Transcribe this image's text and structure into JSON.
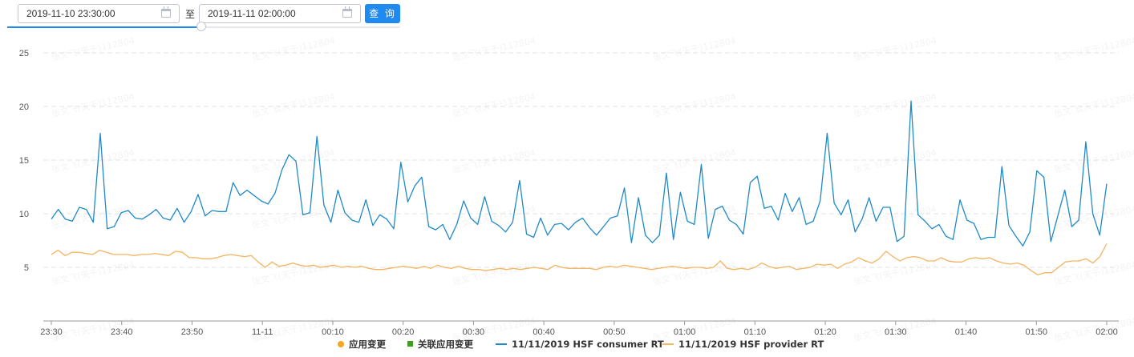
{
  "toolbar": {
    "start_value": "2019-11-10 23:30:00",
    "end_value": "2019-11-11 02:00:00",
    "separator": "至",
    "query_label": "查 询",
    "calendar_icon": "calendar-icon",
    "range_progress": 0.5
  },
  "watermark": "张文飞(天千)112804",
  "chart_data": {
    "type": "line",
    "title": "",
    "xlabel": "",
    "ylabel": "",
    "x_ticks": [
      "23:30",
      "23:40",
      "23:50",
      "11-11",
      "00:10",
      "00:20",
      "00:30",
      "00:40",
      "00:50",
      "01:00",
      "01:10",
      "01:20",
      "01:30",
      "01:40",
      "01:50",
      "02:00"
    ],
    "x_range": [
      "2019-11-10 23:30",
      "2019-11-11 02:00"
    ],
    "ylim": [
      0,
      25
    ],
    "y_ticks": [
      5,
      10,
      15,
      20,
      25
    ],
    "grid": "horizontal dashed",
    "legend_position": "bottom",
    "legend": [
      {
        "label": "应用变更",
        "marker": "dot",
        "color": "#f5a623"
      },
      {
        "label": "关联应用变更",
        "marker": "square",
        "color": "#3f9e1f"
      },
      {
        "label": "11/11/2019 HSF consumer RT",
        "marker": "line",
        "color": "#1f8ac8"
      },
      {
        "label": "11/11/2019 HSF provider RT",
        "marker": "line",
        "color": "#f4b461"
      }
    ],
    "series": [
      {
        "name": "11/11/2019 HSF consumer RT",
        "color": "#1f8ac8",
        "values": [
          9.5,
          10.4,
          9.5,
          9.3,
          10.6,
          10.4,
          9.2,
          17.5,
          8.6,
          8.8,
          10.1,
          10.3,
          9.6,
          9.5,
          9.9,
          10.4,
          9.6,
          9.4,
          10.5,
          9.2,
          10.2,
          11.8,
          9.8,
          10.3,
          10.2,
          10.2,
          12.9,
          11.7,
          12.2,
          11.7,
          11.2,
          10.9,
          11.9,
          14.1,
          15.5,
          14.9,
          9.9,
          10.1,
          17.2,
          10.8,
          9.2,
          12.2,
          10.1,
          9.4,
          9.2,
          11.3,
          8.9,
          9.9,
          9.5,
          8.6,
          14.8,
          11.1,
          12.6,
          13.4,
          8.8,
          8.5,
          9.0,
          7.6,
          9.0,
          11.2,
          9.6,
          9.0,
          11.6,
          9.3,
          8.9,
          8.3,
          9.2,
          13.1,
          8.1,
          7.8,
          9.6,
          8.0,
          9.0,
          9.1,
          8.5,
          9.2,
          9.6,
          8.7,
          8.0,
          8.8,
          9.6,
          9.8,
          12.4,
          7.3,
          11.5,
          8.0,
          7.3,
          8.0,
          13.8,
          7.6,
          12.0,
          9.3,
          9.0,
          14.6,
          7.7,
          10.4,
          10.7,
          9.4,
          9.0,
          8.1,
          12.9,
          13.5,
          10.5,
          10.7,
          9.4,
          11.9,
          10.2,
          11.5,
          9.0,
          9.3,
          11.2,
          17.5,
          11.0,
          9.9,
          11.3,
          8.3,
          9.5,
          11.5,
          9.3,
          10.6,
          10.6,
          7.4,
          7.9,
          20.5,
          9.9,
          9.3,
          8.6,
          9.0,
          7.9,
          7.6,
          11.3,
          9.4,
          9.1,
          7.6,
          7.8,
          7.8,
          14.4,
          8.9,
          7.9,
          7.0,
          8.3,
          14.0,
          13.4,
          7.4,
          9.8,
          12.2,
          8.8,
          9.4,
          16.7,
          10.0,
          8.0,
          12.8
        ]
      },
      {
        "name": "11/11/2019 HSF provider RT",
        "color": "#f4b461",
        "values": [
          6.2,
          6.6,
          6.1,
          6.4,
          6.4,
          6.3,
          6.2,
          6.6,
          6.4,
          6.2,
          6.2,
          6.2,
          6.1,
          6.2,
          6.2,
          6.3,
          6.2,
          6.1,
          6.5,
          6.4,
          5.9,
          5.9,
          5.8,
          5.8,
          5.9,
          6.1,
          6.2,
          6.1,
          6.0,
          6.1,
          5.5,
          5.0,
          5.5,
          5.1,
          5.2,
          5.4,
          5.2,
          5.1,
          5.2,
          5.0,
          5.1,
          5.2,
          5.0,
          5.1,
          5.0,
          5.1,
          4.9,
          4.8,
          4.8,
          4.9,
          5.0,
          5.1,
          5.0,
          4.9,
          5.1,
          4.9,
          5.2,
          5.0,
          4.9,
          5.1,
          4.9,
          4.8,
          4.8,
          4.7,
          4.8,
          4.9,
          4.8,
          4.9,
          4.8,
          4.9,
          5.0,
          4.9,
          4.8,
          5.2,
          5.0,
          4.9,
          4.9,
          4.9,
          4.9,
          4.8,
          5.0,
          5.1,
          5.0,
          5.2,
          5.1,
          5.0,
          4.9,
          4.8,
          4.9,
          5.0,
          5.1,
          5.0,
          4.9,
          5.0,
          5.0,
          4.9,
          5.0,
          5.6,
          4.9,
          4.8,
          4.9,
          4.8,
          5.0,
          5.4,
          5.1,
          4.9,
          5.0,
          5.1,
          4.8,
          4.9,
          5.0,
          5.3,
          5.2,
          5.3,
          4.9,
          5.3,
          5.5,
          5.9,
          5.6,
          5.4,
          5.8,
          6.5,
          6.0,
          5.6,
          5.9,
          6.0,
          5.9,
          5.6,
          5.6,
          5.9,
          5.6,
          5.5,
          5.5,
          5.8,
          5.9,
          5.8,
          5.9,
          5.6,
          5.4,
          5.3,
          5.4,
          5.2,
          4.7,
          4.3,
          4.5,
          4.5,
          5.0,
          5.5,
          5.6,
          5.6,
          5.8,
          5.4,
          6.0,
          7.2
        ]
      }
    ]
  }
}
